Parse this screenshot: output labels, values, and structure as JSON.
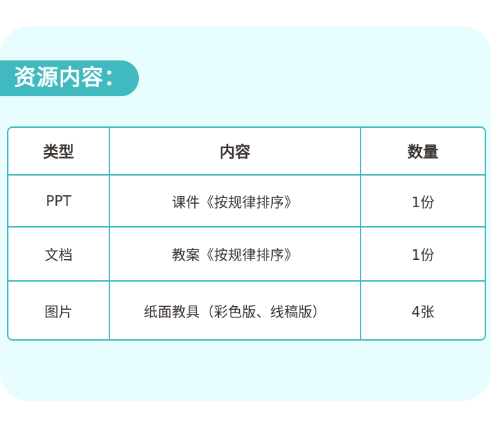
{
  "section_title": "资源内容：",
  "table": {
    "headers": [
      "类型",
      "内容",
      "数量"
    ],
    "rows": [
      [
        "PPT",
        "课件《按规律排序》",
        "1份"
      ],
      [
        "文档",
        "教案《按规律排序》",
        "1份"
      ],
      [
        "图片",
        "纸面教具（彩色版、线稿版）",
        "4张"
      ]
    ]
  },
  "colors": {
    "accent": "#40babf",
    "card_bg": "#e8fdfd"
  }
}
